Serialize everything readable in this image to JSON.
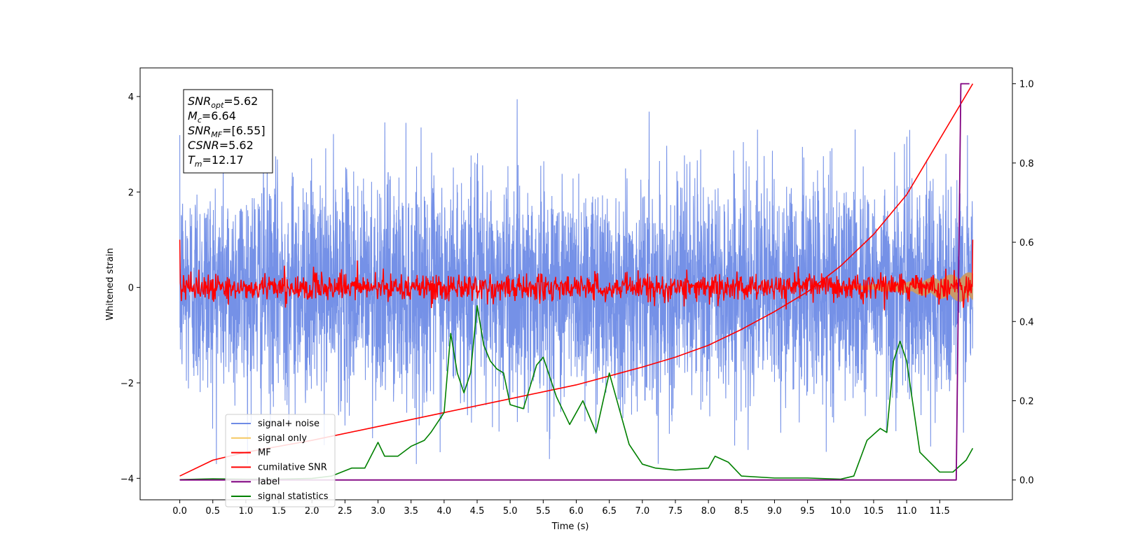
{
  "chart_data": {
    "type": "line",
    "xlabel": "Time (s)",
    "ylabel": "Whitened strain",
    "xlim": [
      -0.6,
      12.6
    ],
    "ylim": [
      -4.45,
      4.6
    ],
    "ylim_right": [
      -0.05,
      1.04
    ],
    "x_ticks": [
      "0.0",
      "0.5",
      "1.0",
      "1.5",
      "2.0",
      "2.5",
      "3.0",
      "3.5",
      "4.0",
      "4.5",
      "5.0",
      "5.5",
      "6.0",
      "6.5",
      "7.0",
      "7.5",
      "8.0",
      "8.5",
      "9.0",
      "9.5",
      "10.0",
      "10.5",
      "11.0",
      "11.5"
    ],
    "y_ticks_left": [
      "−4",
      "−2",
      "0",
      "2",
      "4"
    ],
    "y_ticks_right": [
      "0.0",
      "0.2",
      "0.4",
      "0.6",
      "0.8",
      "1.0"
    ],
    "annotation": {
      "lines": [
        {
          "sym": "SNR",
          "sub": "opt",
          "value": "=5.62"
        },
        {
          "sym": "M",
          "sub": "c",
          "value": "=6.64"
        },
        {
          "sym": "SNR",
          "sub": "MF",
          "value": "=[6.55]"
        },
        {
          "sym": "CSNR",
          "sub": "",
          "value": "=5.62"
        },
        {
          "sym": "T",
          "sub": "m",
          "value": "=12.17"
        }
      ]
    },
    "legend": {
      "position": "lower-left",
      "entries": [
        {
          "label": "signal+ noise",
          "color": "#6e8be6"
        },
        {
          "label": "signal only",
          "color": "#f5c862"
        },
        {
          "label": "MF",
          "color": "#ff0000"
        },
        {
          "label": "cumilative SNR",
          "color": "#ff0000"
        },
        {
          "label": "label",
          "color": "#800080"
        },
        {
          "label": "signal statistics",
          "color": "#008000"
        }
      ]
    },
    "series": [
      {
        "name": "signal+ noise",
        "axis": "left",
        "color": "#6e8be6",
        "x_range": [
          0,
          12
        ],
        "note_amplitude": "noise band roughly -3.6 to 4.2"
      },
      {
        "name": "signal only",
        "axis": "left",
        "color": "#f5c862",
        "x_range": [
          10.0,
          12.0
        ],
        "envelope": [
          [
            10.0,
            0.02
          ],
          [
            11.0,
            0.12
          ],
          [
            11.8,
            0.3
          ],
          [
            12.0,
            0.32
          ]
        ]
      },
      {
        "name": "MF",
        "axis": "left",
        "color": "#ff0000",
        "x_range": [
          0,
          12
        ],
        "start_value": 1.0,
        "end_value": 1.0
      },
      {
        "name": "cumilative SNR",
        "axis": "right",
        "color": "#ff0000",
        "points": [
          [
            0.0,
            0.01
          ],
          [
            0.5,
            0.05
          ],
          [
            1.0,
            0.07
          ],
          [
            2.0,
            0.1
          ],
          [
            3.0,
            0.135
          ],
          [
            4.0,
            0.17
          ],
          [
            5.0,
            0.205
          ],
          [
            6.0,
            0.24
          ],
          [
            7.0,
            0.285
          ],
          [
            7.5,
            0.31
          ],
          [
            8.0,
            0.34
          ],
          [
            8.5,
            0.38
          ],
          [
            9.0,
            0.425
          ],
          [
            9.5,
            0.475
          ],
          [
            10.0,
            0.54
          ],
          [
            10.5,
            0.62
          ],
          [
            11.0,
            0.72
          ],
          [
            11.5,
            0.86
          ],
          [
            12.0,
            1.0
          ]
        ]
      },
      {
        "name": "label",
        "axis": "right",
        "color": "#800080",
        "points": [
          [
            0.0,
            0.0
          ],
          [
            11.75,
            0.0
          ],
          [
            11.82,
            1.0
          ],
          [
            11.95,
            1.0
          ]
        ]
      },
      {
        "name": "signal statistics",
        "axis": "right",
        "color": "#008000",
        "points": [
          [
            0.0,
            0.001
          ],
          [
            0.5,
            0.003
          ],
          [
            1.0,
            0.002
          ],
          [
            1.5,
            0.002
          ],
          [
            2.0,
            0.004
          ],
          [
            2.3,
            0.01
          ],
          [
            2.6,
            0.03
          ],
          [
            2.8,
            0.03
          ],
          [
            3.0,
            0.095
          ],
          [
            3.1,
            0.06
          ],
          [
            3.3,
            0.06
          ],
          [
            3.5,
            0.085
          ],
          [
            3.7,
            0.1
          ],
          [
            3.8,
            0.12
          ],
          [
            4.0,
            0.17
          ],
          [
            4.1,
            0.37
          ],
          [
            4.2,
            0.27
          ],
          [
            4.3,
            0.22
          ],
          [
            4.4,
            0.27
          ],
          [
            4.5,
            0.44
          ],
          [
            4.6,
            0.34
          ],
          [
            4.7,
            0.3
          ],
          [
            4.8,
            0.28
          ],
          [
            4.9,
            0.27
          ],
          [
            5.0,
            0.19
          ],
          [
            5.2,
            0.18
          ],
          [
            5.4,
            0.29
          ],
          [
            5.5,
            0.31
          ],
          [
            5.7,
            0.21
          ],
          [
            5.9,
            0.14
          ],
          [
            6.1,
            0.2
          ],
          [
            6.3,
            0.12
          ],
          [
            6.5,
            0.27
          ],
          [
            6.6,
            0.21
          ],
          [
            6.8,
            0.09
          ],
          [
            7.0,
            0.04
          ],
          [
            7.2,
            0.03
          ],
          [
            7.5,
            0.025
          ],
          [
            8.0,
            0.03
          ],
          [
            8.1,
            0.06
          ],
          [
            8.3,
            0.045
          ],
          [
            8.5,
            0.01
          ],
          [
            9.0,
            0.005
          ],
          [
            9.5,
            0.005
          ],
          [
            10.0,
            0.002
          ],
          [
            10.2,
            0.01
          ],
          [
            10.4,
            0.1
          ],
          [
            10.6,
            0.13
          ],
          [
            10.7,
            0.12
          ],
          [
            10.8,
            0.3
          ],
          [
            10.9,
            0.35
          ],
          [
            11.0,
            0.3
          ],
          [
            11.2,
            0.07
          ],
          [
            11.5,
            0.02
          ],
          [
            11.7,
            0.02
          ],
          [
            11.9,
            0.05
          ],
          [
            12.0,
            0.08
          ]
        ]
      }
    ]
  }
}
